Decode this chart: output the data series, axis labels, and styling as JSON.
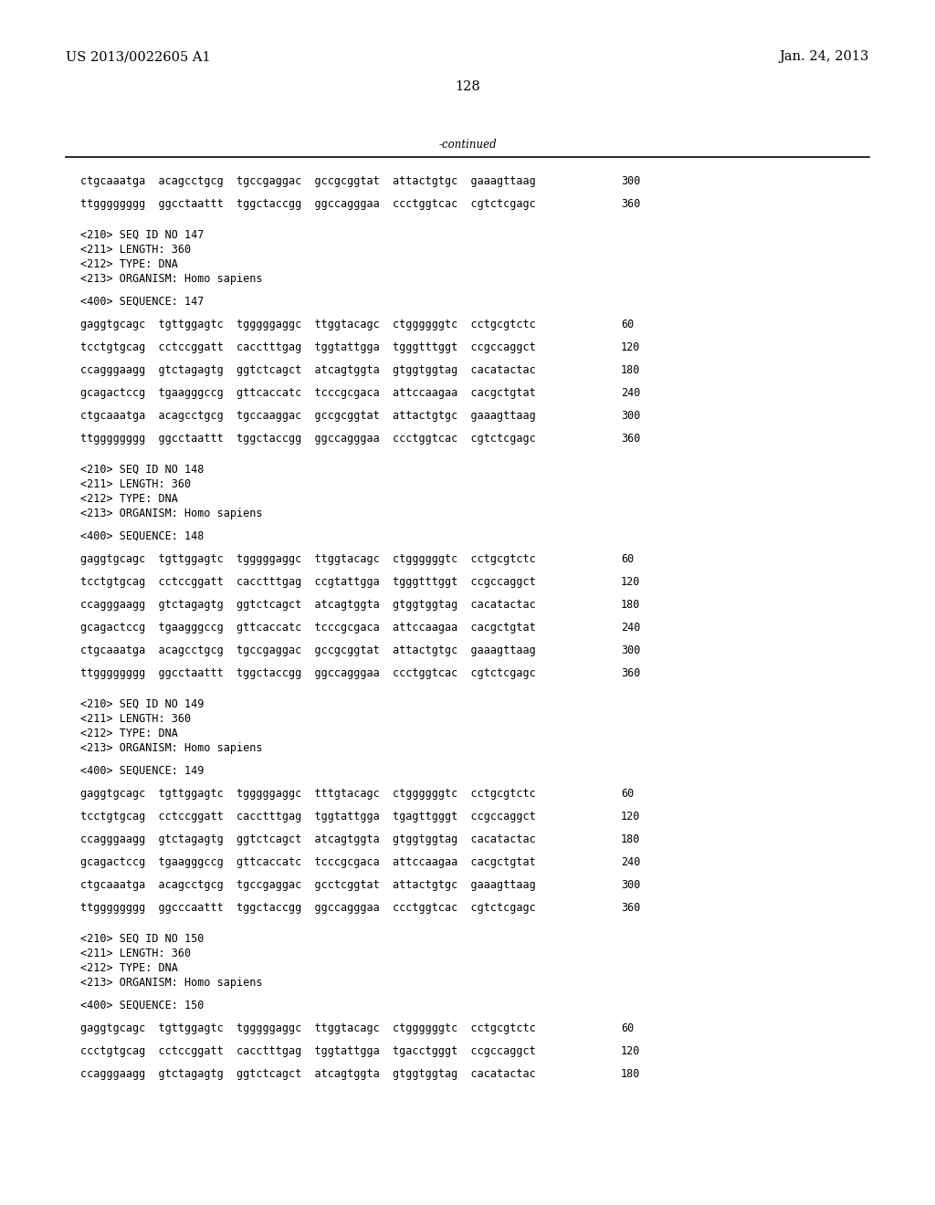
{
  "background_color": "#ffffff",
  "page_number": "128",
  "header_left": "US 2013/0022605 A1",
  "header_right": "Jan. 24, 2013",
  "continued_label": "-continued",
  "font_size_header": 10.5,
  "font_size_body": 8.5,
  "content_lines": [
    {
      "text": "ctgcaaatga  acagcctgcg  tgccgaggac  gccgcggtat  attactgtgc  gaaagttaag",
      "num": "300",
      "type": "seq"
    },
    {
      "text": "",
      "num": "",
      "type": "blank"
    },
    {
      "text": "ttgggggggg  ggcctaattt  tggctaccgg  ggccagggaa  ccctggtcac  cgtctcgagc",
      "num": "360",
      "type": "seq"
    },
    {
      "text": "",
      "num": "",
      "type": "blank"
    },
    {
      "text": "",
      "num": "",
      "type": "blank"
    },
    {
      "text": "<210> SEQ ID NO 147",
      "num": "",
      "type": "meta"
    },
    {
      "text": "<211> LENGTH: 360",
      "num": "",
      "type": "meta"
    },
    {
      "text": "<212> TYPE: DNA",
      "num": "",
      "type": "meta"
    },
    {
      "text": "<213> ORGANISM: Homo sapiens",
      "num": "",
      "type": "meta"
    },
    {
      "text": "",
      "num": "",
      "type": "blank"
    },
    {
      "text": "<400> SEQUENCE: 147",
      "num": "",
      "type": "meta"
    },
    {
      "text": "",
      "num": "",
      "type": "blank"
    },
    {
      "text": "gaggtgcagc  tgttggagtc  tgggggaggc  ttggtacagc  ctggggggtc  cctgcgtctc",
      "num": "60",
      "type": "seq"
    },
    {
      "text": "",
      "num": "",
      "type": "blank"
    },
    {
      "text": "tcctgtgcag  cctccggatt  cacctttgag  tggtattgga  tgggtttggt  ccgccaggct",
      "num": "120",
      "type": "seq"
    },
    {
      "text": "",
      "num": "",
      "type": "blank"
    },
    {
      "text": "ccagggaagg  gtctagagtg  ggtctcagct  atcagtggta  gtggtggtag  cacatactac",
      "num": "180",
      "type": "seq"
    },
    {
      "text": "",
      "num": "",
      "type": "blank"
    },
    {
      "text": "gcagactccg  tgaagggccg  gttcaccatc  tcccgcgaca  attccaagaa  cacgctgtat",
      "num": "240",
      "type": "seq"
    },
    {
      "text": "",
      "num": "",
      "type": "blank"
    },
    {
      "text": "ctgcaaatga  acagcctgcg  tgccaaggac  gccgcggtat  attactgtgc  gaaagttaag",
      "num": "300",
      "type": "seq"
    },
    {
      "text": "",
      "num": "",
      "type": "blank"
    },
    {
      "text": "ttgggggggg  ggcctaattt  tggctaccgg  ggccagggaa  ccctggtcac  cgtctcgagc",
      "num": "360",
      "type": "seq"
    },
    {
      "text": "",
      "num": "",
      "type": "blank"
    },
    {
      "text": "",
      "num": "",
      "type": "blank"
    },
    {
      "text": "<210> SEQ ID NO 148",
      "num": "",
      "type": "meta"
    },
    {
      "text": "<211> LENGTH: 360",
      "num": "",
      "type": "meta"
    },
    {
      "text": "<212> TYPE: DNA",
      "num": "",
      "type": "meta"
    },
    {
      "text": "<213> ORGANISM: Homo sapiens",
      "num": "",
      "type": "meta"
    },
    {
      "text": "",
      "num": "",
      "type": "blank"
    },
    {
      "text": "<400> SEQUENCE: 148",
      "num": "",
      "type": "meta"
    },
    {
      "text": "",
      "num": "",
      "type": "blank"
    },
    {
      "text": "gaggtgcagc  tgttggagtc  tgggggaggc  ttggtacagc  ctggggggtc  cctgcgtctc",
      "num": "60",
      "type": "seq"
    },
    {
      "text": "",
      "num": "",
      "type": "blank"
    },
    {
      "text": "tcctgtgcag  cctccggatt  cacctttgag  ccgtattgga  tgggtttggt  ccgccaggct",
      "num": "120",
      "type": "seq"
    },
    {
      "text": "",
      "num": "",
      "type": "blank"
    },
    {
      "text": "ccagggaagg  gtctagagtg  ggtctcagct  atcagtggta  gtggtggtag  cacatactac",
      "num": "180",
      "type": "seq"
    },
    {
      "text": "",
      "num": "",
      "type": "blank"
    },
    {
      "text": "gcagactccg  tgaagggccg  gttcaccatc  tcccgcgaca  attccaagaa  cacgctgtat",
      "num": "240",
      "type": "seq"
    },
    {
      "text": "",
      "num": "",
      "type": "blank"
    },
    {
      "text": "ctgcaaatga  acagcctgcg  tgccgaggac  gccgcggtat  attactgtgc  gaaagttaag",
      "num": "300",
      "type": "seq"
    },
    {
      "text": "",
      "num": "",
      "type": "blank"
    },
    {
      "text": "ttgggggggg  ggcctaattt  tggctaccgg  ggccagggaa  ccctggtcac  cgtctcgagc",
      "num": "360",
      "type": "seq"
    },
    {
      "text": "",
      "num": "",
      "type": "blank"
    },
    {
      "text": "",
      "num": "",
      "type": "blank"
    },
    {
      "text": "<210> SEQ ID NO 149",
      "num": "",
      "type": "meta"
    },
    {
      "text": "<211> LENGTH: 360",
      "num": "",
      "type": "meta"
    },
    {
      "text": "<212> TYPE: DNA",
      "num": "",
      "type": "meta"
    },
    {
      "text": "<213> ORGANISM: Homo sapiens",
      "num": "",
      "type": "meta"
    },
    {
      "text": "",
      "num": "",
      "type": "blank"
    },
    {
      "text": "<400> SEQUENCE: 149",
      "num": "",
      "type": "meta"
    },
    {
      "text": "",
      "num": "",
      "type": "blank"
    },
    {
      "text": "gaggtgcagc  tgttggagtc  tgggggaggc  tttgtacagc  ctggggggtc  cctgcgtctc",
      "num": "60",
      "type": "seq"
    },
    {
      "text": "",
      "num": "",
      "type": "blank"
    },
    {
      "text": "tcctgtgcag  cctccggatt  cacctttgag  tggtattgga  tgagttgggt  ccgccaggct",
      "num": "120",
      "type": "seq"
    },
    {
      "text": "",
      "num": "",
      "type": "blank"
    },
    {
      "text": "ccagggaagg  gtctagagtg  ggtctcagct  atcagtggta  gtggtggtag  cacatactac",
      "num": "180",
      "type": "seq"
    },
    {
      "text": "",
      "num": "",
      "type": "blank"
    },
    {
      "text": "gcagactccg  tgaagggccg  gttcaccatc  tcccgcgaca  attccaagaa  cacgctgtat",
      "num": "240",
      "type": "seq"
    },
    {
      "text": "",
      "num": "",
      "type": "blank"
    },
    {
      "text": "ctgcaaatga  acagcctgcg  tgccgaggac  gcctcggtat  attactgtgc  gaaagttaag",
      "num": "300",
      "type": "seq"
    },
    {
      "text": "",
      "num": "",
      "type": "blank"
    },
    {
      "text": "ttgggggggg  ggcccaattt  tggctaccgg  ggccagggaa  ccctggtcac  cgtctcgagc",
      "num": "360",
      "type": "seq"
    },
    {
      "text": "",
      "num": "",
      "type": "blank"
    },
    {
      "text": "",
      "num": "",
      "type": "blank"
    },
    {
      "text": "<210> SEQ ID NO 150",
      "num": "",
      "type": "meta"
    },
    {
      "text": "<211> LENGTH: 360",
      "num": "",
      "type": "meta"
    },
    {
      "text": "<212> TYPE: DNA",
      "num": "",
      "type": "meta"
    },
    {
      "text": "<213> ORGANISM: Homo sapiens",
      "num": "",
      "type": "meta"
    },
    {
      "text": "",
      "num": "",
      "type": "blank"
    },
    {
      "text": "<400> SEQUENCE: 150",
      "num": "",
      "type": "meta"
    },
    {
      "text": "",
      "num": "",
      "type": "blank"
    },
    {
      "text": "gaggtgcagc  tgttggagtc  tgggggaggc  ttggtacagc  ctggggggtc  cctgcgtctc",
      "num": "60",
      "type": "seq"
    },
    {
      "text": "",
      "num": "",
      "type": "blank"
    },
    {
      "text": "ccctgtgcag  cctccggatt  cacctttgag  tggtattgga  tgacctgggt  ccgccaggct",
      "num": "120",
      "type": "seq"
    },
    {
      "text": "",
      "num": "",
      "type": "blank"
    },
    {
      "text": "ccagggaagg  gtctagagtg  ggtctcagct  atcagtggta  gtggtggtag  cacatactac",
      "num": "180",
      "type": "seq"
    }
  ]
}
